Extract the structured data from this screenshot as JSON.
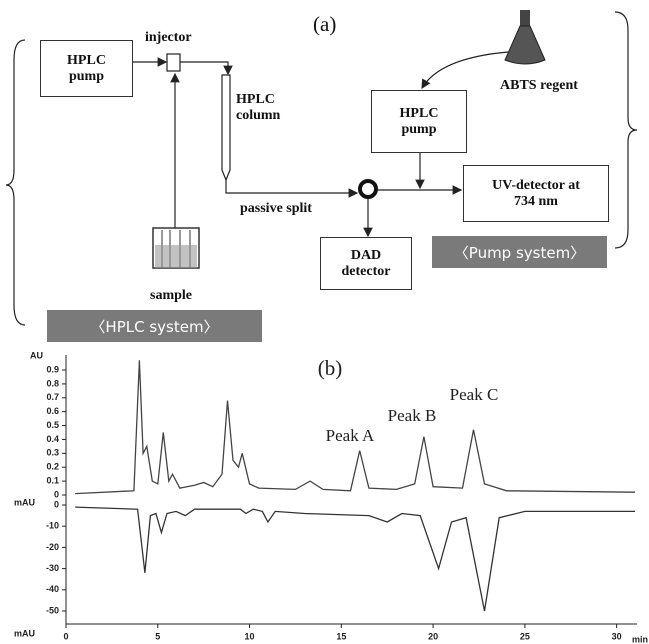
{
  "diagram": {
    "label": "(a)",
    "hplc_pump": "HPLC pump",
    "injector": "injector",
    "hplc_column": "HPLC column",
    "passive_split": "passive split",
    "sample": "sample",
    "abts_reagent": "ABTS regent",
    "pump2": "HPLC pump",
    "uv_detector": "UV-detector at 734 nm",
    "dad_detector": "DAD detector",
    "pump_system": "〈Pump system〉",
    "hplc_system": "〈HPLC system〉"
  },
  "chart_data": {
    "type": "line",
    "label": "(b)",
    "ylabel": "AU",
    "y2label": "mAU",
    "y2label_bottom": "mAU",
    "xlabel": "min",
    "xlim": [
      0,
      31
    ],
    "xticks": [
      0,
      5,
      10,
      15,
      20,
      25,
      30
    ],
    "ylim": [
      0,
      0.9
    ],
    "yticks": [
      0,
      0.1,
      0.2,
      0.3,
      0.4,
      0.5,
      0.6,
      0.7,
      0.8,
      0.9
    ],
    "y2lim": [
      -50,
      0
    ],
    "y2ticks": [
      0,
      -10,
      -20,
      -30,
      -40,
      -50
    ],
    "annotations": [
      "Peak A",
      "Peak B",
      "Peak C"
    ],
    "series": [
      {
        "color": "#444444",
        "x": [
          0.5,
          3.7,
          4.0,
          4.2,
          4.4,
          4.7,
          5.0,
          5.3,
          5.6,
          5.8,
          6.2,
          7.0,
          7.5,
          8.0,
          8.5,
          8.8,
          9.1,
          9.4,
          9.6,
          10.0,
          10.5,
          12.5,
          13.3,
          14,
          15.5,
          16.0,
          16.5,
          18,
          19.0,
          19.5,
          20.0,
          21.6,
          22.2,
          22.8,
          24,
          31
        ],
        "values": [
          0.01,
          0.03,
          0.97,
          0.3,
          0.35,
          0.1,
          0.08,
          0.45,
          0.1,
          0.15,
          0.05,
          0.07,
          0.09,
          0.06,
          0.15,
          0.68,
          0.25,
          0.2,
          0.3,
          0.08,
          0.05,
          0.04,
          0.1,
          0.04,
          0.03,
          0.32,
          0.05,
          0.04,
          0.08,
          0.42,
          0.06,
          0.05,
          0.47,
          0.08,
          0.03,
          0.02
        ]
      },
      {
        "color": "#333333",
        "axis": "y2",
        "x": [
          0.5,
          3.9,
          4.3,
          4.6,
          4.9,
          5.2,
          5.5,
          6.0,
          6.5,
          7.0,
          9.5,
          9.8,
          10.2,
          10.7,
          11.0,
          11.4,
          13,
          16.5,
          17.5,
          18.3,
          19.3,
          20.3,
          21.0,
          21.8,
          22.8,
          23.6,
          25,
          31
        ],
        "values": [
          -1,
          -2,
          -32,
          -5,
          -4,
          -13,
          -4,
          -3,
          -5,
          -2,
          -2,
          -4,
          -2,
          -3,
          -8,
          -3,
          -4,
          -5,
          -8,
          -4,
          -5,
          -30,
          -8,
          -6,
          -50,
          -6,
          -3,
          -3
        ]
      }
    ]
  }
}
